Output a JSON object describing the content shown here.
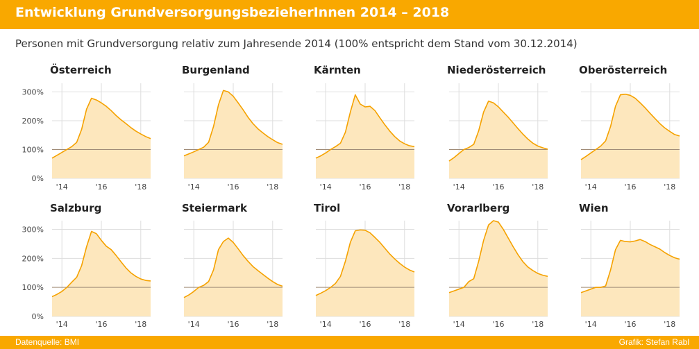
{
  "header": {
    "title": "Entwicklung GrundversorgungsbezieherInnen 2014 – 2018",
    "subtitle": "Personen mit Grundversorgung relativ zum Jahresende 2014 (100% entspricht dem Stand vom 30.12.2014)"
  },
  "footer": {
    "source": "Datenquelle: BMI",
    "credit": "Grafik: Stefan Rabl"
  },
  "colors": {
    "line": "#f5a200",
    "fill": "#fde7bd",
    "baseline": "#a08c78",
    "grid": "#dddddd",
    "header": "#f9a800"
  },
  "chart_data": {
    "type": "area",
    "layout": "small-multiples 2x5",
    "title": "Entwicklung GrundversorgungsbezieherInnen 2014 – 2018",
    "subtitle": "Personen mit Grundversorgung relativ zum Jahresende 2014 (100% entspricht dem Stand vom 30.12.2014)",
    "xlabel": "",
    "ylabel": "",
    "x_unit": "year",
    "xlim": [
      2013.5,
      2018.5
    ],
    "ylim": [
      0,
      330
    ],
    "grid": true,
    "y_ticks": [
      0,
      100,
      200,
      300
    ],
    "y_tick_labels": [
      "0%",
      "100%",
      "200%",
      "300%"
    ],
    "x_ticks": [
      2014,
      2016,
      2018
    ],
    "x_tick_labels": [
      "'14",
      "'16",
      "'18"
    ],
    "reference_line": 100,
    "x": [
      2013.5,
      2013.75,
      2014.0,
      2014.25,
      2014.5,
      2014.75,
      2015.0,
      2015.25,
      2015.5,
      2015.75,
      2016.0,
      2016.25,
      2016.5,
      2016.75,
      2017.0,
      2017.25,
      2017.5,
      2017.75,
      2018.0,
      2018.25,
      2018.5
    ],
    "series": [
      {
        "name": "Österreich",
        "values": [
          70,
          80,
          90,
          100,
          110,
          125,
          170,
          240,
          278,
          272,
          262,
          250,
          235,
          218,
          203,
          190,
          176,
          164,
          154,
          145,
          138
        ]
      },
      {
        "name": "Burgenland",
        "values": [
          78,
          85,
          92,
          100,
          108,
          125,
          180,
          255,
          305,
          300,
          285,
          262,
          238,
          212,
          190,
          172,
          158,
          145,
          134,
          124,
          118
        ]
      },
      {
        "name": "Kärnten",
        "values": [
          70,
          78,
          88,
          100,
          110,
          122,
          160,
          230,
          290,
          258,
          248,
          250,
          235,
          210,
          186,
          164,
          145,
          130,
          120,
          113,
          110
        ]
      },
      {
        "name": "Niederösterreich",
        "values": [
          60,
          72,
          86,
          100,
          107,
          118,
          165,
          230,
          268,
          262,
          248,
          230,
          212,
          192,
          172,
          153,
          136,
          122,
          112,
          106,
          101
        ]
      },
      {
        "name": "Oberösterreich",
        "values": [
          65,
          76,
          88,
          100,
          112,
          130,
          180,
          250,
          290,
          292,
          288,
          278,
          262,
          245,
          226,
          208,
          190,
          175,
          163,
          152,
          147
        ]
      },
      {
        "name": "Salzburg",
        "values": [
          68,
          76,
          86,
          100,
          118,
          135,
          175,
          240,
          293,
          285,
          262,
          242,
          230,
          210,
          188,
          167,
          150,
          138,
          129,
          124,
          122
        ]
      },
      {
        "name": "Steiermark",
        "values": [
          65,
          74,
          86,
          100,
          107,
          120,
          160,
          230,
          258,
          270,
          255,
          233,
          210,
          190,
          172,
          158,
          145,
          132,
          120,
          110,
          104
        ]
      },
      {
        "name": "Tirol",
        "values": [
          72,
          80,
          89,
          100,
          114,
          138,
          190,
          255,
          295,
          298,
          297,
          288,
          272,
          255,
          235,
          215,
          198,
          183,
          170,
          160,
          153
        ]
      },
      {
        "name": "Vorarlberg",
        "values": [
          82,
          88,
          94,
          100,
          120,
          130,
          190,
          262,
          315,
          330,
          325,
          300,
          270,
          240,
          212,
          188,
          170,
          158,
          148,
          142,
          138
        ]
      },
      {
        "name": "Wien",
        "values": [
          82,
          88,
          94,
          100,
          100,
          105,
          160,
          230,
          262,
          258,
          257,
          260,
          265,
          258,
          248,
          240,
          232,
          220,
          210,
          202,
          197
        ]
      }
    ]
  }
}
